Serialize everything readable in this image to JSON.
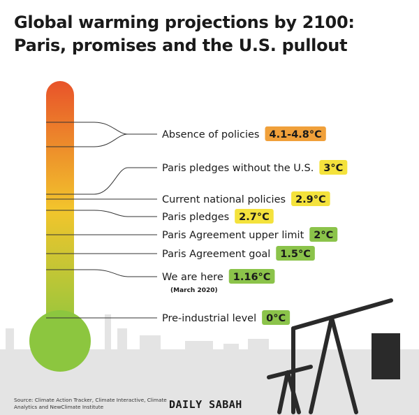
{
  "title_line1": "Global warming projections by 2100:",
  "title_line2": "Paris, promises and the U.S. pullout",
  "source": "Source: Climate Action Tracker, Climate Interactive, Climate Analytics and NewClimate Institute",
  "brand": "DAILY SABAH",
  "colors": {
    "thermo_top": "#e8532a",
    "thermo_mid": "#f2c52c",
    "thermo_bottom": "#8cc63f",
    "orange": "#f0a03a",
    "yellow": "#f4e23c",
    "green": "#8bc34a",
    "line": "#333333",
    "skyline": "#e4e4e4"
  },
  "chart_data": {
    "type": "thermometer",
    "unit": "°C",
    "items": [
      {
        "label": "Absence of policies",
        "value": "4.1-4.8°C",
        "color": "orange"
      },
      {
        "label": "Paris pledges without the U.S.",
        "value": "3°C",
        "color": "yellow"
      },
      {
        "label": "Current national policies",
        "value": "2.9°C",
        "color": "yellow"
      },
      {
        "label": "Paris pledges",
        "value": "2.7°C",
        "color": "yellow"
      },
      {
        "label": "Paris Agreement upper limit",
        "value": "2°C",
        "color": "green"
      },
      {
        "label": "Paris Agreement goal",
        "value": "1.5°C",
        "color": "green"
      },
      {
        "label": "We are here",
        "value": "1.16°C",
        "color": "green",
        "note": "(March 2020)"
      },
      {
        "label": "Pre-industrial level",
        "value": "0°C",
        "color": "green"
      }
    ]
  }
}
